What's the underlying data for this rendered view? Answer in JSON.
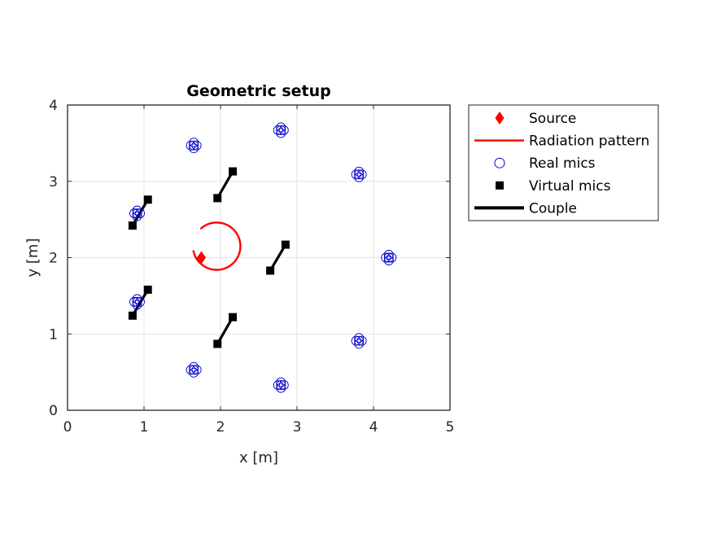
{
  "chart_data": {
    "type": "scatter",
    "title": "Geometric setup",
    "xlabel": "x [m]",
    "ylabel": "y [m]",
    "xlim": [
      0,
      5
    ],
    "ylim": [
      0,
      4
    ],
    "xticks": [
      0,
      1,
      2,
      3,
      4,
      5
    ],
    "yticks": [
      0,
      1,
      2,
      3,
      4
    ],
    "grid": true,
    "legend_position": "outside-right-top",
    "colors": {
      "source": "#ff0000",
      "radiation": "#ff0000",
      "real_mics": "#0000cc",
      "virtual_mics": "#000000",
      "couple": "#000000"
    },
    "legend": [
      {
        "label": "Source",
        "marker": "diamond-icon"
      },
      {
        "label": "Radiation pattern",
        "marker": "line-red-icon"
      },
      {
        "label": "Real mics",
        "marker": "circle-open-icon"
      },
      {
        "label": "Virtual mics",
        "marker": "square-filled-icon"
      },
      {
        "label": "Couple",
        "marker": "line-black-thick-icon"
      }
    ],
    "source": {
      "x": 1.75,
      "y": 2.0
    },
    "radiation_pattern": {
      "center_x": 1.95,
      "center_y": 2.15,
      "radius": 0.31,
      "gap_start_deg": 135,
      "gap_end_deg": 190
    },
    "real_mics": [
      {
        "x": 1.65,
        "y": 3.47
      },
      {
        "x": 2.79,
        "y": 3.67
      },
      {
        "x": 3.81,
        "y": 3.09
      },
      {
        "x": 4.2,
        "y": 2.0
      },
      {
        "x": 3.81,
        "y": 0.91
      },
      {
        "x": 2.79,
        "y": 0.33
      },
      {
        "x": 1.65,
        "y": 0.53
      },
      {
        "x": 0.91,
        "y": 1.42
      },
      {
        "x": 0.91,
        "y": 2.58
      }
    ],
    "virtual_mics": [
      {
        "x": 1.05,
        "y": 2.76
      },
      {
        "x": 0.85,
        "y": 2.42
      },
      {
        "x": 2.16,
        "y": 3.13
      },
      {
        "x": 1.96,
        "y": 2.78
      },
      {
        "x": 2.85,
        "y": 2.17
      },
      {
        "x": 2.65,
        "y": 1.83
      },
      {
        "x": 2.16,
        "y": 1.22
      },
      {
        "x": 1.96,
        "y": 0.87
      },
      {
        "x": 1.05,
        "y": 1.58
      },
      {
        "x": 0.85,
        "y": 1.24
      }
    ],
    "couples": [
      [
        {
          "x": 1.05,
          "y": 2.76
        },
        {
          "x": 0.85,
          "y": 2.42
        }
      ],
      [
        {
          "x": 2.16,
          "y": 3.13
        },
        {
          "x": 1.96,
          "y": 2.78
        }
      ],
      [
        {
          "x": 2.85,
          "y": 2.17
        },
        {
          "x": 2.65,
          "y": 1.83
        }
      ],
      [
        {
          "x": 2.16,
          "y": 1.22
        },
        {
          "x": 1.96,
          "y": 0.87
        }
      ],
      [
        {
          "x": 1.05,
          "y": 1.58
        },
        {
          "x": 0.85,
          "y": 1.24
        }
      ]
    ]
  }
}
